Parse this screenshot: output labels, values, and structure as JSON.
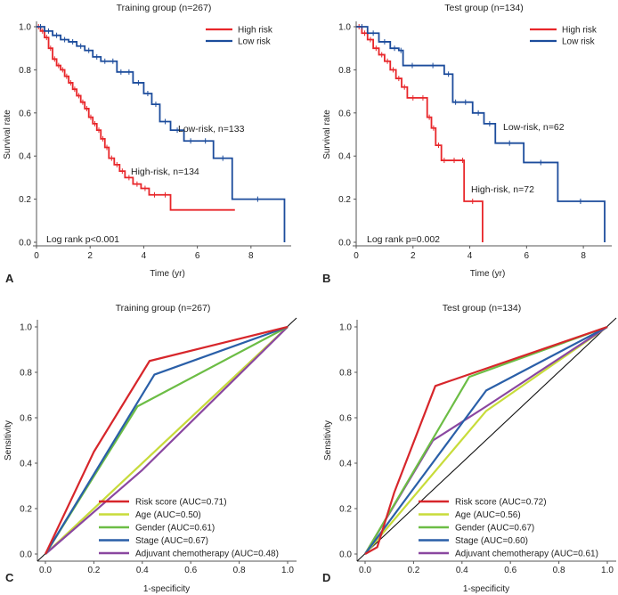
{
  "chart_data": [
    {
      "type": "line",
      "panel": "A",
      "title": "Training group (n=267)",
      "xlabel": "Time (yr)",
      "ylabel": "Survival rate",
      "xlim": [
        0,
        9.5
      ],
      "ylim": [
        0,
        1.0
      ],
      "xticks": [
        0,
        2,
        4,
        6,
        8
      ],
      "yticks": [
        0.0,
        0.2,
        0.4,
        0.6,
        0.8,
        1.0
      ],
      "ytick_labels": [
        "0.0",
        "0.2",
        "0.4",
        "0.6",
        "0.8",
        "1.0"
      ],
      "legend": [
        "High risk",
        "Low risk"
      ],
      "annotations": [
        "Low-risk, n=133",
        "High-risk, n=134",
        "Log rank p<0.001"
      ],
      "series": [
        {
          "name": "High risk",
          "color": "#e8262a",
          "x": [
            0,
            0.15,
            0.3,
            0.45,
            0.6,
            0.75,
            0.9,
            1.05,
            1.2,
            1.35,
            1.5,
            1.65,
            1.8,
            1.95,
            2.1,
            2.25,
            2.4,
            2.55,
            2.7,
            2.9,
            3.1,
            3.3,
            3.6,
            3.9,
            4.2,
            4.6,
            5.0,
            7.4
          ],
          "y": [
            1.0,
            0.98,
            0.95,
            0.9,
            0.85,
            0.82,
            0.8,
            0.77,
            0.74,
            0.71,
            0.68,
            0.65,
            0.62,
            0.58,
            0.55,
            0.52,
            0.48,
            0.44,
            0.39,
            0.36,
            0.33,
            0.3,
            0.27,
            0.25,
            0.22,
            0.22,
            0.15,
            0.15
          ]
        },
        {
          "name": "Low risk",
          "color": "#1c4c9c",
          "x": [
            0,
            0.3,
            0.6,
            0.9,
            1.2,
            1.5,
            1.8,
            2.1,
            2.4,
            2.7,
            3.0,
            3.3,
            3.6,
            4.0,
            4.3,
            4.6,
            5.0,
            5.5,
            6.0,
            6.6,
            7.3,
            9.2,
            9.25
          ],
          "y": [
            1.0,
            0.98,
            0.96,
            0.94,
            0.93,
            0.91,
            0.89,
            0.86,
            0.84,
            0.84,
            0.79,
            0.79,
            0.74,
            0.69,
            0.64,
            0.56,
            0.52,
            0.47,
            0.47,
            0.39,
            0.2,
            0.2,
            0.0
          ]
        }
      ]
    },
    {
      "type": "line",
      "panel": "B",
      "title": "Test group (n=134)",
      "xlabel": "Time (yr)",
      "ylabel": "Survival rate",
      "xlim": [
        0,
        9.0
      ],
      "ylim": [
        0,
        1.0
      ],
      "xticks": [
        0,
        2,
        4,
        6,
        8
      ],
      "yticks": [
        0.0,
        0.2,
        0.4,
        0.6,
        0.8,
        1.0
      ],
      "ytick_labels": [
        "0.0",
        "0.2",
        "0.4",
        "0.6",
        "0.8",
        "1.0"
      ],
      "legend": [
        "High risk",
        "Low risk"
      ],
      "annotations": [
        "Low-risk, n=62",
        "High-risk, n=72",
        "Log rank p=0.002"
      ],
      "series": [
        {
          "name": "High risk",
          "color": "#e8262a",
          "x": [
            0,
            0.2,
            0.4,
            0.6,
            0.8,
            1.0,
            1.2,
            1.4,
            1.6,
            1.8,
            2.2,
            2.5,
            2.65,
            2.8,
            3.0,
            3.2,
            3.7,
            3.8,
            4.4,
            4.45
          ],
          "y": [
            1.0,
            0.97,
            0.94,
            0.9,
            0.87,
            0.84,
            0.8,
            0.76,
            0.72,
            0.67,
            0.67,
            0.58,
            0.53,
            0.45,
            0.38,
            0.38,
            0.38,
            0.19,
            0.19,
            0.0
          ]
        },
        {
          "name": "Low risk",
          "color": "#1c4c9c",
          "x": [
            0,
            0.4,
            0.8,
            1.2,
            1.5,
            1.65,
            2.3,
            3.1,
            3.4,
            3.6,
            4.1,
            4.5,
            4.9,
            5.9,
            7.1,
            8.7,
            8.75
          ],
          "y": [
            1.0,
            0.97,
            0.93,
            0.9,
            0.89,
            0.82,
            0.82,
            0.78,
            0.65,
            0.65,
            0.6,
            0.55,
            0.46,
            0.37,
            0.19,
            0.19,
            0.0
          ]
        }
      ]
    },
    {
      "type": "line",
      "panel": "C",
      "title": "Training group (n=267)",
      "xlabel": "1-specificity",
      "ylabel": "Sensitivity",
      "xlim": [
        0,
        1
      ],
      "ylim": [
        0,
        1
      ],
      "xticks": [
        0,
        0.2,
        0.4,
        0.6,
        0.8,
        1.0
      ],
      "yticks": [
        0,
        0.2,
        0.4,
        0.6,
        0.8,
        1.0
      ],
      "xtick_labels": [
        "0.0",
        "0.2",
        "0.4",
        "0.6",
        "0.8",
        "1.0"
      ],
      "ytick_labels": [
        "0.0",
        "0.2",
        "0.4",
        "0.6",
        "0.8",
        "1.0"
      ],
      "series": [
        {
          "name": "Risk score (AUC=0.71)",
          "color": "#d7262b",
          "x": [
            0,
            0.2,
            0.43,
            1
          ],
          "y": [
            0,
            0.45,
            0.85,
            1
          ]
        },
        {
          "name": "Age (AUC=0.50)",
          "color": "#c8dc3a",
          "x": [
            0,
            1
          ],
          "y": [
            0,
            1
          ]
        },
        {
          "name": "Gender (AUC=0.61)",
          "color": "#6cbd45",
          "x": [
            0,
            0.38,
            1
          ],
          "y": [
            0,
            0.65,
            1
          ]
        },
        {
          "name": "Stage (AUC=0.67)",
          "color": "#2a5fa8",
          "x": [
            0,
            0.45,
            1
          ],
          "y": [
            0,
            0.79,
            1
          ]
        },
        {
          "name": "Adjuvant chemotherapy (AUC=0.48)",
          "color": "#8a47a0",
          "x": [
            0,
            0.4,
            1
          ],
          "y": [
            0,
            0.37,
            1
          ]
        }
      ]
    },
    {
      "type": "line",
      "panel": "D",
      "title": "Test group (n=134)",
      "xlabel": "1-specificity",
      "ylabel": "Sensitivity",
      "xlim": [
        0,
        1
      ],
      "ylim": [
        0,
        1
      ],
      "xticks": [
        0,
        0.2,
        0.4,
        0.6,
        0.8,
        1.0
      ],
      "yticks": [
        0,
        0.2,
        0.4,
        0.6,
        0.8,
        1.0
      ],
      "xtick_labels": [
        "0.0",
        "0.2",
        "0.4",
        "0.6",
        "0.8",
        "1.0"
      ],
      "ytick_labels": [
        "0.0",
        "0.2",
        "0.4",
        "0.6",
        "0.8",
        "1.0"
      ],
      "series": [
        {
          "name": "Risk score (AUC=0.72)",
          "color": "#d7262b",
          "x": [
            0,
            0.05,
            0.12,
            0.29,
            1
          ],
          "y": [
            0,
            0.03,
            0.27,
            0.74,
            1
          ]
        },
        {
          "name": "Age (AUC=0.56)",
          "color": "#c8dc3a",
          "x": [
            0,
            0.5,
            1
          ],
          "y": [
            0,
            0.63,
            1
          ]
        },
        {
          "name": "Gender (AUC=0.67)",
          "color": "#6cbd45",
          "x": [
            0,
            0.27,
            0.43,
            1
          ],
          "y": [
            0,
            0.49,
            0.78,
            1
          ]
        },
        {
          "name": "Stage (AUC=0.60)",
          "color": "#2a5fa8",
          "x": [
            0,
            0.5,
            1
          ],
          "y": [
            0,
            0.72,
            1
          ]
        },
        {
          "name": "Adjuvant chemotherapy (AUC=0.61)",
          "color": "#8a47a0",
          "x": [
            0,
            0.28,
            0.5,
            1
          ],
          "y": [
            0,
            0.5,
            0.65,
            1
          ]
        }
      ]
    }
  ]
}
